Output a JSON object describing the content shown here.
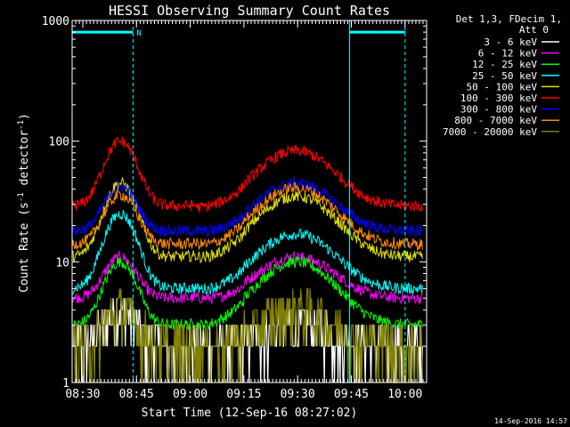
{
  "chart_data": {
    "type": "line",
    "title": "HESSI Observing Summary Count Rates",
    "xlabel": "Start Time (12-Sep-16 08:27:02)",
    "ylabel_parts": [
      "Count Rate (s",
      "-1",
      " detector",
      "-1",
      ")"
    ],
    "yscale": "log",
    "ylim": [
      1,
      1000
    ],
    "xlim_minutes": [
      0,
      99
    ],
    "x_ticks": [
      {
        "label": "08:30",
        "minute": 2.97
      },
      {
        "label": "08:45",
        "minute": 17.97
      },
      {
        "label": "09:00",
        "minute": 32.97
      },
      {
        "label": "09:15",
        "minute": 47.97
      },
      {
        "label": "09:30",
        "minute": 62.97
      },
      {
        "label": "09:45",
        "minute": 77.97
      },
      {
        "label": "10:00",
        "minute": 92.97
      }
    ],
    "y_ticks": [
      {
        "label": "1",
        "value": 1
      },
      {
        "label": "10",
        "value": 10
      },
      {
        "label": "100",
        "value": 100
      },
      {
        "label": "1000",
        "value": 1000
      }
    ],
    "legend_header": [
      "Det 1,3, FDecim 1,",
      "Att 0"
    ],
    "legend_position": "right",
    "series": [
      {
        "name": "3 - 6 keV",
        "color": "#ffffff",
        "base": 2,
        "peak1": 4,
        "peak2": 3,
        "mode": "quantized",
        "valley": 2
      },
      {
        "name": "6 - 12 keV",
        "color": "#ff00ff",
        "base": 5,
        "peak1": 11,
        "peak2": 11,
        "mode": "noisy",
        "valley": 5
      },
      {
        "name": "12 - 25 keV",
        "color": "#00ff00",
        "base": 3,
        "peak1": 10,
        "peak2": 10,
        "mode": "noisy",
        "valley": 3
      },
      {
        "name": "25 - 50 keV",
        "color": "#00ffff",
        "base": 6,
        "peak1": 25,
        "peak2": 17,
        "mode": "noisy",
        "valley": 6
      },
      {
        "name": "50 - 100 keV",
        "color": "#e0e000",
        "base": 11,
        "peak1": 45,
        "peak2": 35,
        "mode": "noisy",
        "valley": 11
      },
      {
        "name": "100 - 300 keV",
        "color": "#ff0000",
        "base": 29,
        "peak1": 100,
        "peak2": 83,
        "mode": "noisy",
        "valley": 28
      },
      {
        "name": "300 - 800 keV",
        "color": "#0000ff",
        "base": 18,
        "peak1": 42,
        "peak2": 45,
        "mode": "noisy",
        "valley": 18
      },
      {
        "name": "800 - 7000 keV",
        "color": "#ff8c00",
        "base": 14,
        "peak1": 36,
        "peak2": 41,
        "mode": "noisy",
        "valley": 14
      },
      {
        "name": "7000 - 20000 keV",
        "color": "#808000",
        "base": 2,
        "peak1": 4,
        "peak2": 4,
        "mode": "quantized",
        "valley": 1
      }
    ],
    "peaks_minutes": [
      13.5,
      62.5
    ],
    "attenuator_bars": [
      {
        "label": "N",
        "start_minute": 0,
        "end_minute": 17,
        "value": 800
      },
      {
        "label": "",
        "start_minute": 77.5,
        "end_minute": 93,
        "value": 800
      }
    ],
    "attenuator_lines_minutes": [
      0,
      17,
      77.5,
      93
    ],
    "timestamp": "14-Sep-2016 14:57"
  }
}
